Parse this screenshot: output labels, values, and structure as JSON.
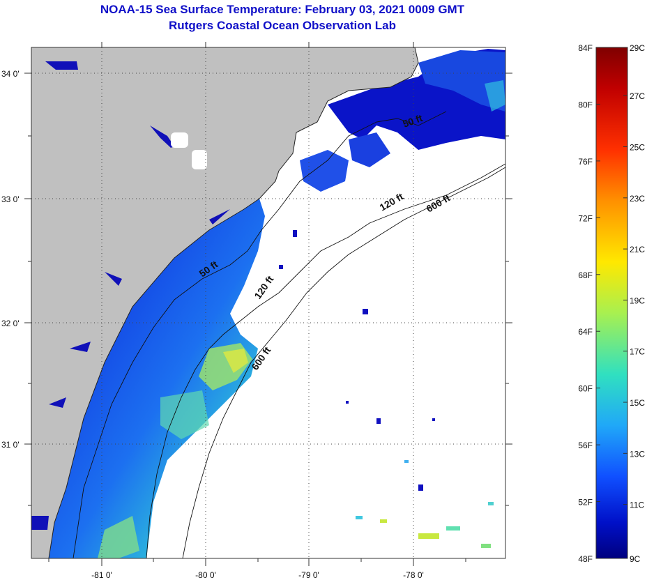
{
  "title": {
    "line1": "NOAA-15 Sea Surface Temperature:  February 03, 2021 0009 GMT",
    "line2": "Rutgers Coastal Ocean Observation Lab"
  },
  "map": {
    "lon_ticks": [
      {
        "value": -81,
        "label": "-81 0'"
      },
      {
        "value": -80,
        "label": "-80 0'"
      },
      {
        "value": -79,
        "label": "-79 0'"
      },
      {
        "value": -78,
        "label": "-78 0'"
      }
    ],
    "lat_ticks": [
      {
        "value": 34,
        "label": "34 0'"
      },
      {
        "value": 33,
        "label": "33 0'"
      },
      {
        "value": 32,
        "label": "32 0'"
      },
      {
        "value": 31,
        "label": "31 0'"
      }
    ],
    "contour_labels": [
      {
        "text": "50 ft"
      },
      {
        "text": "120 ft"
      },
      {
        "text": "600 ft"
      },
      {
        "text": "120 ft"
      },
      {
        "text": "600 ft"
      },
      {
        "text": "50 ft"
      }
    ]
  },
  "colorbar": {
    "fahrenheit_labels": [
      "84F",
      "80F",
      "76F",
      "72F",
      "68F",
      "64F",
      "60F",
      "56F",
      "52F",
      "48F"
    ],
    "celsius_labels": [
      "29C",
      "27C",
      "25C",
      "23C",
      "21C",
      "19C",
      "17C",
      "15C",
      "13C",
      "11C",
      "9C"
    ],
    "colors": [
      "#7f0000",
      "#d00000",
      "#ff4000",
      "#ffa000",
      "#ffe000",
      "#a0f050",
      "#30e0c0",
      "#20b0f0",
      "#1060ff",
      "#0010d0",
      "#00007f"
    ]
  }
}
